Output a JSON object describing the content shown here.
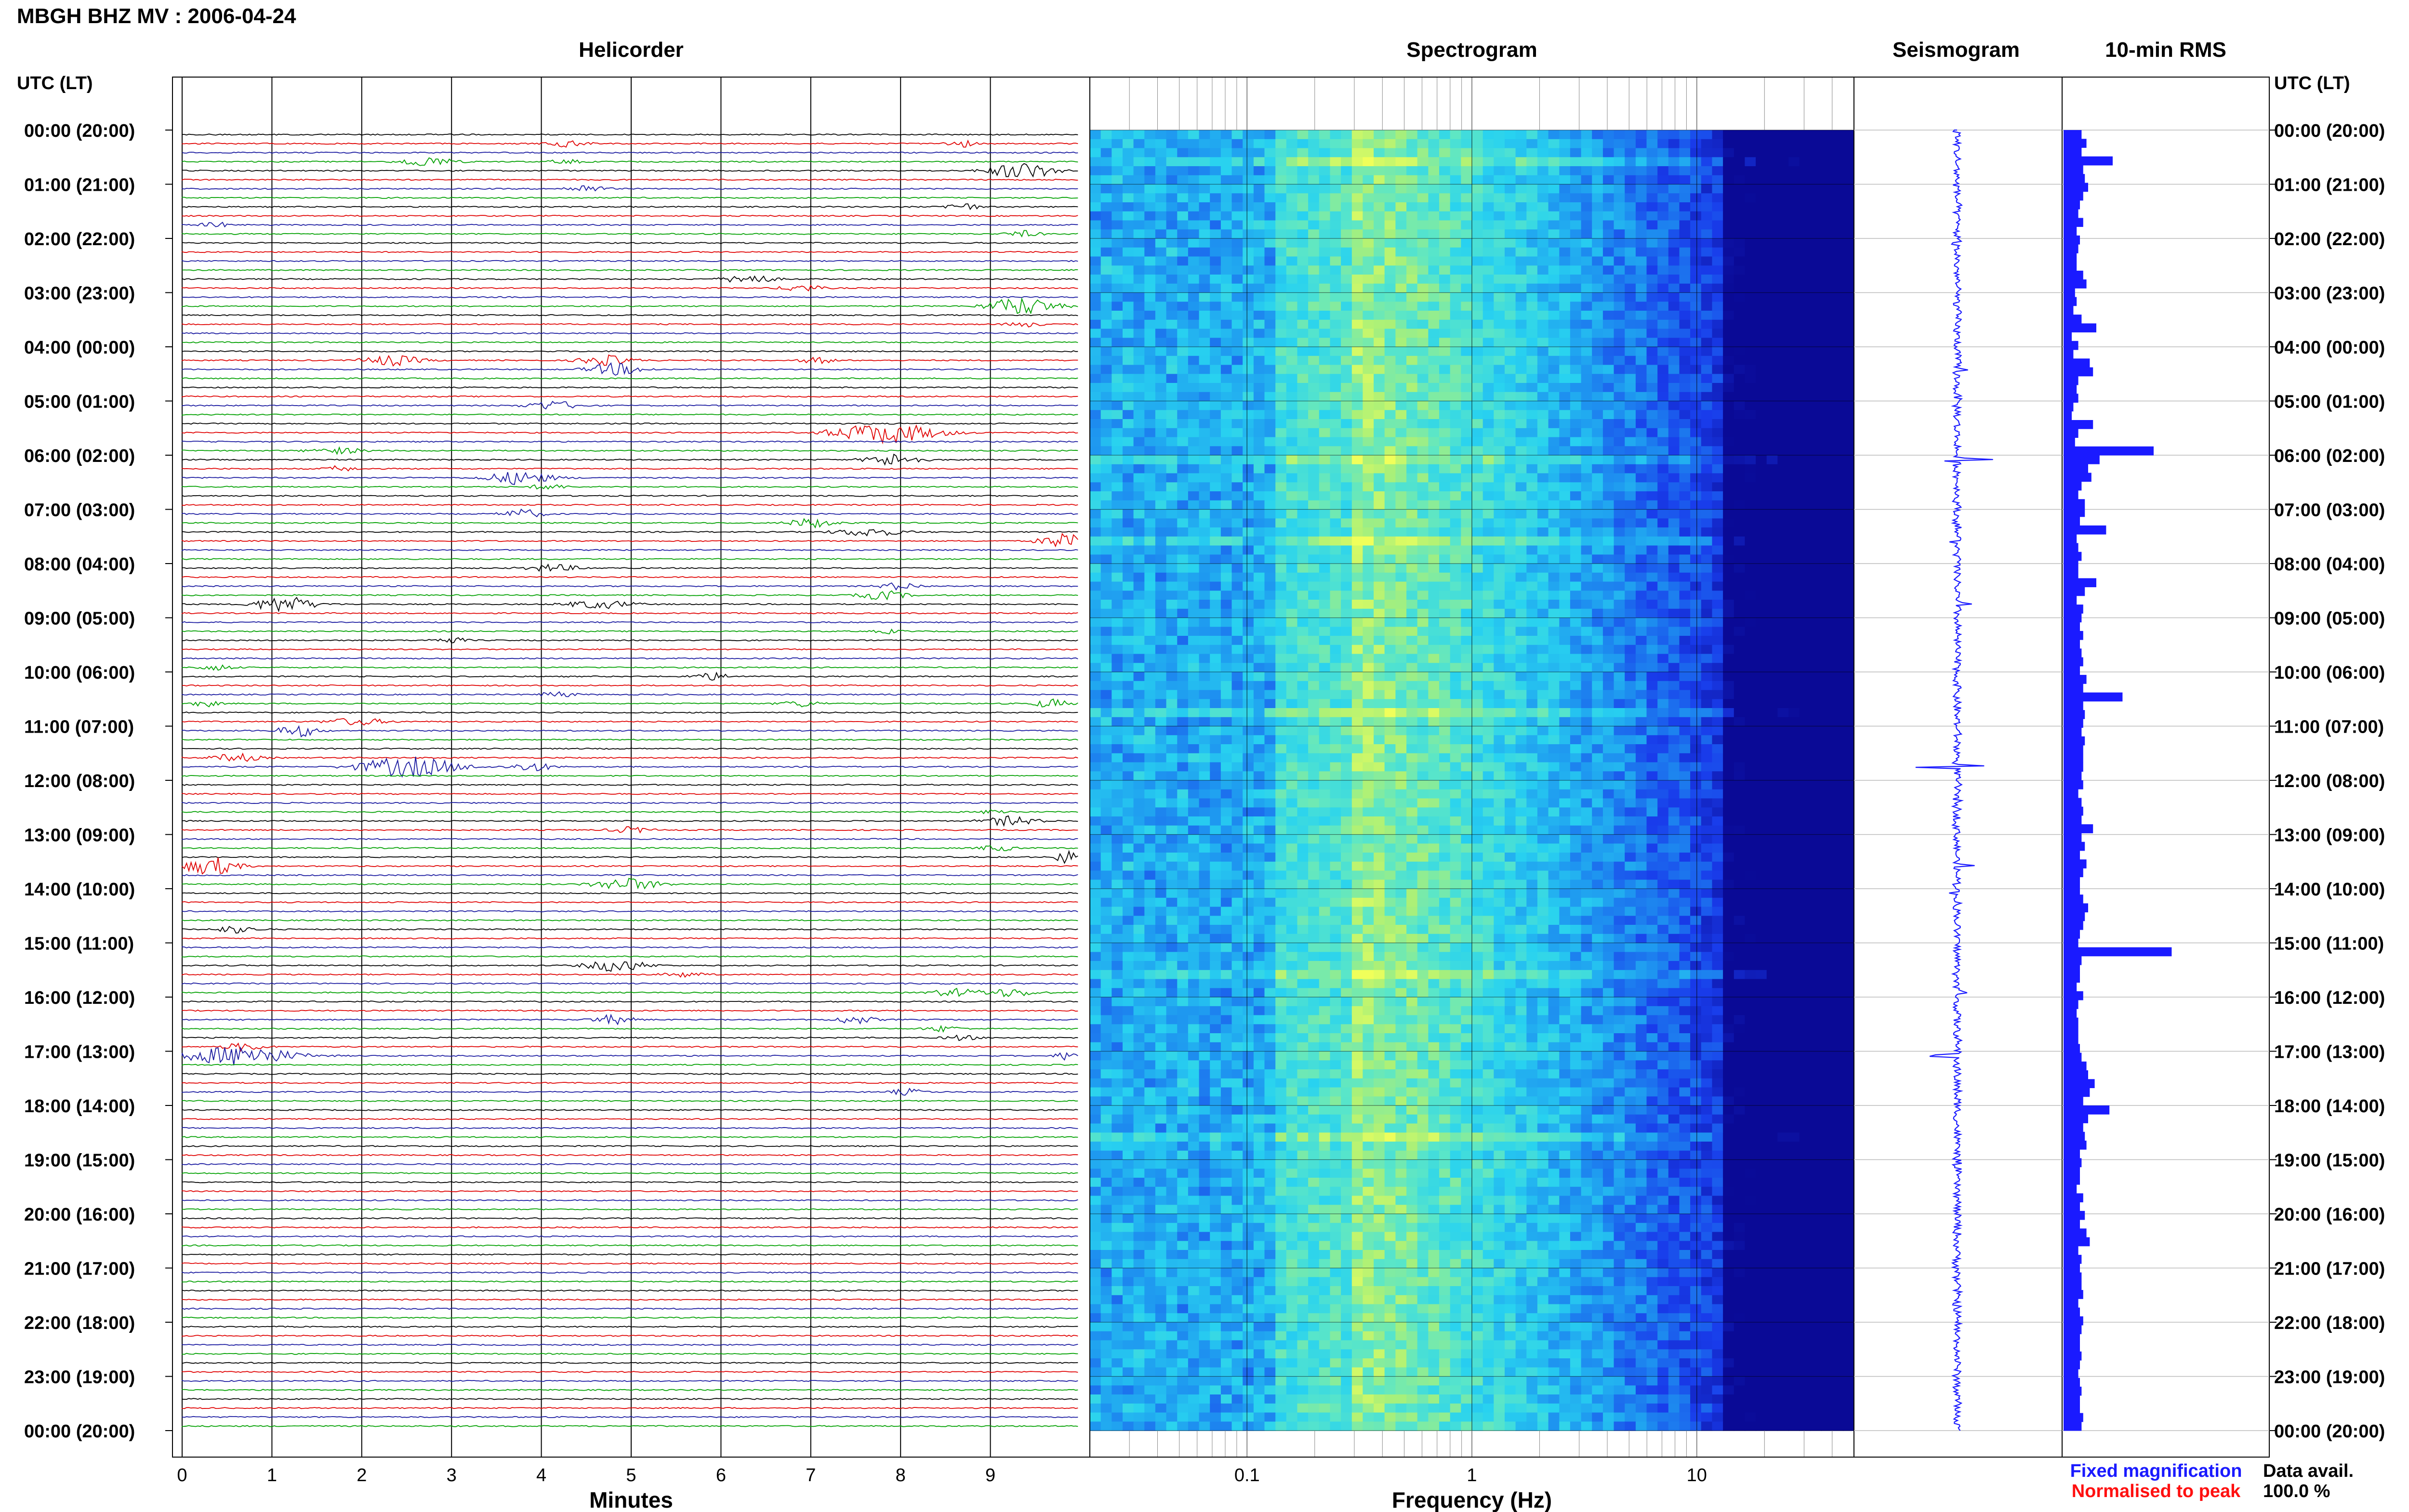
{
  "header": {
    "title": "MBGH BHZ MV : 2006-04-24",
    "left_axis_title": "UTC (LT)",
    "right_axis_title": "UTC (LT)"
  },
  "panels": {
    "helicorder": "Helicorder",
    "spectrogram": "Spectrogram",
    "seismogram": "Seismogram",
    "rms": "10-min RMS"
  },
  "axes": {
    "minutes_label": "Minutes",
    "frequency_label": "Frequency (Hz)"
  },
  "legend": {
    "fixed": "Fixed magnification",
    "normalised": "Normalised to peak",
    "fixed_color": "#1a1aff",
    "normalised_color": "#ff1010"
  },
  "availability": {
    "label": "Data avail.",
    "value": "100.0 %"
  },
  "colors": {
    "trace_colors": [
      "#000000",
      "#e00000",
      "#1a1aa0",
      "#00a000"
    ],
    "rms_bar": "#1a1aff",
    "seismogram": "#1a1aff",
    "spectrogram_low": "#0a0a9a",
    "spectrogram_high": "#f0ff60"
  },
  "chart_data": [
    {
      "type": "line",
      "name": "helicorder",
      "xlabel": "Minutes",
      "x_ticks": [
        0,
        1,
        2,
        3,
        4,
        5,
        6,
        7,
        8,
        9
      ],
      "xlim": [
        0,
        10
      ],
      "rows_per_hour": 6,
      "hours": 24,
      "hour_labels": [
        "00:00 (20:00)",
        "01:00 (21:00)",
        "02:00 (22:00)",
        "03:00 (23:00)",
        "04:00 (00:00)",
        "05:00 (01:00)",
        "06:00 (02:00)",
        "07:00 (03:00)",
        "08:00 (04:00)",
        "09:00 (05:00)",
        "10:00 (06:00)",
        "11:00 (07:00)",
        "12:00 (08:00)",
        "13:00 (09:00)",
        "14:00 (10:00)",
        "15:00 (11:00)",
        "16:00 (12:00)",
        "17:00 (13:00)",
        "18:00 (14:00)",
        "19:00 (15:00)",
        "20:00 (16:00)",
        "21:00 (17:00)",
        "22:00 (18:00)",
        "23:00 (19:00)",
        "00:00 (20:00)"
      ],
      "events": [
        {
          "row": 1,
          "minute": 4.2,
          "amp": 0.3,
          "dur": 0.6
        },
        {
          "row": 1,
          "minute": 8.6,
          "amp": 0.4,
          "dur": 0.4
        },
        {
          "row": 3,
          "minute": 2.6,
          "amp": 0.5,
          "dur": 0.8
        },
        {
          "row": 3,
          "minute": 4.2,
          "amp": 0.2,
          "dur": 0.5
        },
        {
          "row": 4,
          "minute": 9.2,
          "amp": 0.8,
          "dur": 1.0
        },
        {
          "row": 6,
          "minute": 4.4,
          "amp": 0.35,
          "dur": 0.6
        },
        {
          "row": 8,
          "minute": 8.6,
          "amp": 0.4,
          "dur": 0.5
        },
        {
          "row": 10,
          "minute": 0.3,
          "amp": 0.3,
          "dur": 0.4
        },
        {
          "row": 11,
          "minute": 9.3,
          "amp": 0.3,
          "dur": 0.5
        },
        {
          "row": 16,
          "minute": 6.2,
          "amp": 0.5,
          "dur": 0.7
        },
        {
          "row": 17,
          "minute": 6.8,
          "amp": 0.35,
          "dur": 0.6
        },
        {
          "row": 19,
          "minute": 9.2,
          "amp": 0.9,
          "dur": 1.0
        },
        {
          "row": 21,
          "minute": 9.3,
          "amp": 0.25,
          "dur": 0.5
        },
        {
          "row": 25,
          "minute": 2.2,
          "amp": 0.5,
          "dur": 0.9
        },
        {
          "row": 25,
          "minute": 4.6,
          "amp": 0.5,
          "dur": 0.8
        },
        {
          "row": 25,
          "minute": 7.0,
          "amp": 0.3,
          "dur": 0.5
        },
        {
          "row": 26,
          "minute": 4.7,
          "amp": 0.6,
          "dur": 0.8
        },
        {
          "row": 30,
          "minute": 4.0,
          "amp": 0.45,
          "dur": 0.8
        },
        {
          "row": 33,
          "minute": 7.6,
          "amp": 1.0,
          "dur": 1.6
        },
        {
          "row": 35,
          "minute": 1.6,
          "amp": 0.3,
          "dur": 0.8
        },
        {
          "row": 36,
          "minute": 7.8,
          "amp": 0.6,
          "dur": 0.8
        },
        {
          "row": 37,
          "minute": 1.7,
          "amp": 0.3,
          "dur": 0.4
        },
        {
          "row": 38,
          "minute": 3.6,
          "amp": 0.65,
          "dur": 1.0
        },
        {
          "row": 39,
          "minute": 4.0,
          "amp": 0.3,
          "dur": 0.5
        },
        {
          "row": 42,
          "minute": 3.7,
          "amp": 0.45,
          "dur": 0.6
        },
        {
          "row": 43,
          "minute": 6.9,
          "amp": 0.45,
          "dur": 0.7
        },
        {
          "row": 44,
          "minute": 7.5,
          "amp": 0.4,
          "dur": 1.0
        },
        {
          "row": 45,
          "minute": 9.7,
          "amp": 0.7,
          "dur": 0.7
        },
        {
          "row": 48,
          "minute": 4.0,
          "amp": 0.35,
          "dur": 0.8
        },
        {
          "row": 50,
          "minute": 7.9,
          "amp": 0.35,
          "dur": 0.6
        },
        {
          "row": 51,
          "minute": 7.7,
          "amp": 0.45,
          "dur": 0.7
        },
        {
          "row": 52,
          "minute": 1.0,
          "amp": 0.8,
          "dur": 0.9
        },
        {
          "row": 52,
          "minute": 4.5,
          "amp": 0.4,
          "dur": 1.0
        },
        {
          "row": 55,
          "minute": 7.8,
          "amp": 0.2,
          "dur": 0.4
        },
        {
          "row": 56,
          "minute": 2.9,
          "amp": 0.3,
          "dur": 0.5
        },
        {
          "row": 59,
          "minute": 0.3,
          "amp": 0.3,
          "dur": 0.5
        },
        {
          "row": 60,
          "minute": 5.8,
          "amp": 0.35,
          "dur": 0.6
        },
        {
          "row": 62,
          "minute": 4.1,
          "amp": 0.3,
          "dur": 0.5
        },
        {
          "row": 63,
          "minute": 9.6,
          "amp": 0.45,
          "dur": 0.5
        },
        {
          "row": 63,
          "minute": 0.2,
          "amp": 0.3,
          "dur": 0.4
        },
        {
          "row": 63,
          "minute": 6.8,
          "amp": 0.3,
          "dur": 0.6
        },
        {
          "row": 65,
          "minute": 1.8,
          "amp": 0.35,
          "dur": 0.9
        },
        {
          "row": 66,
          "minute": 1.2,
          "amp": 0.6,
          "dur": 0.6
        },
        {
          "row": 69,
          "minute": 0.5,
          "amp": 0.4,
          "dur": 0.7
        },
        {
          "row": 70,
          "minute": 2.3,
          "amp": 1.0,
          "dur": 1.5
        },
        {
          "row": 70,
          "minute": 3.8,
          "amp": 0.45,
          "dur": 0.6
        },
        {
          "row": 75,
          "minute": 9.0,
          "amp": 0.3,
          "dur": 0.4
        },
        {
          "row": 76,
          "minute": 9.1,
          "amp": 0.45,
          "dur": 0.8
        },
        {
          "row": 77,
          "minute": 4.9,
          "amp": 0.3,
          "dur": 0.6
        },
        {
          "row": 79,
          "minute": 9.0,
          "amp": 0.3,
          "dur": 0.5
        },
        {
          "row": 80,
          "minute": 9.8,
          "amp": 0.8,
          "dur": 0.3
        },
        {
          "row": 81,
          "minute": 0.2,
          "amp": 0.9,
          "dur": 0.8
        },
        {
          "row": 83,
          "minute": 4.8,
          "amp": 0.6,
          "dur": 1.0
        },
        {
          "row": 88,
          "minute": 0.5,
          "amp": 0.35,
          "dur": 0.6
        },
        {
          "row": 92,
          "minute": 4.7,
          "amp": 0.6,
          "dur": 0.9
        },
        {
          "row": 93,
          "minute": 5.5,
          "amp": 0.25,
          "dur": 0.6
        },
        {
          "row": 95,
          "minute": 8.5,
          "amp": 0.4,
          "dur": 0.7
        },
        {
          "row": 95,
          "minute": 9.1,
          "amp": 0.4,
          "dur": 0.8
        },
        {
          "row": 98,
          "minute": 4.7,
          "amp": 0.45,
          "dur": 0.6
        },
        {
          "row": 98,
          "minute": 7.4,
          "amp": 0.4,
          "dur": 0.6
        },
        {
          "row": 99,
          "minute": 8.4,
          "amp": 0.3,
          "dur": 0.5
        },
        {
          "row": 100,
          "minute": 8.6,
          "amp": 0.25,
          "dur": 0.5
        },
        {
          "row": 101,
          "minute": 0.6,
          "amp": 0.4,
          "dur": 0.6
        },
        {
          "row": 102,
          "minute": 9.8,
          "amp": 0.5,
          "dur": 0.3
        },
        {
          "row": 102,
          "minute": 0.4,
          "amp": 1.0,
          "dur": 1.6
        },
        {
          "row": 106,
          "minute": 8.0,
          "amp": 0.3,
          "dur": 0.5
        }
      ]
    },
    {
      "type": "heatmap",
      "name": "spectrogram",
      "xlabel": "Frequency (Hz)",
      "x_scale": "log",
      "xlim": [
        0.02,
        50
      ],
      "x_ticks": [
        0.1,
        1,
        10
      ],
      "x_tick_labels": [
        "0.1",
        "1",
        "10"
      ],
      "peak_frequency_hz": 0.3,
      "colormap": "jet-like, dark blue to yellow"
    },
    {
      "type": "line",
      "name": "seismogram",
      "orientation": "vertical",
      "spikes": [
        {
          "row": 3,
          "amp": 0.25
        },
        {
          "row": 12,
          "amp": 0.2
        },
        {
          "row": 26,
          "amp": 0.2
        },
        {
          "row": 36,
          "amp": 0.7
        },
        {
          "row": 45,
          "amp": 0.25
        },
        {
          "row": 52,
          "amp": 0.3
        },
        {
          "row": 70,
          "amp": 1.0
        },
        {
          "row": 81,
          "amp": 0.35
        },
        {
          "row": 84,
          "amp": 0.2
        },
        {
          "row": 95,
          "amp": 0.25
        },
        {
          "row": 102,
          "amp": 0.95
        }
      ]
    },
    {
      "type": "bar",
      "name": "10-min RMS",
      "orientation": "horizontal",
      "values": [
        1.1,
        1.4,
        1.1,
        3.0,
        1.2,
        1.3,
        1.5,
        1.2,
        1.0,
        0.9,
        1.2,
        0.8,
        1.0,
        0.9,
        0.8,
        0.8,
        1.2,
        1.4,
        0.7,
        0.8,
        0.6,
        1.1,
        2.0,
        0.5,
        0.9,
        0.6,
        1.6,
        1.8,
        0.9,
        0.8,
        0.9,
        0.6,
        0.5,
        1.8,
        0.9,
        0.7,
        5.5,
        2.2,
        1.5,
        1.7,
        1.1,
        0.9,
        1.3,
        1.3,
        1.0,
        2.6,
        0.8,
        0.9,
        1.1,
        0.9,
        0.9,
        2.0,
        1.3,
        0.8,
        1.2,
        1.1,
        1.0,
        1.2,
        1.0,
        1.1,
        1.2,
        1.0,
        1.4,
        1.2,
        3.6,
        1.2,
        1.3,
        1.2,
        1.1,
        1.3,
        1.2,
        1.2,
        1.2,
        1.1,
        1.2,
        0.9,
        1.1,
        1.2,
        1.1,
        1.8,
        1.1,
        1.3,
        1.0,
        1.4,
        1.2,
        1.0,
        1.0,
        1.2,
        1.5,
        1.3,
        1.2,
        1.0,
        0.9,
        6.6,
        1.1,
        1.0,
        1.0,
        0.8,
        1.2,
        0.9,
        0.8,
        0.9,
        0.9,
        0.9,
        1.0,
        1.1,
        1.4,
        1.5,
        1.9,
        1.6,
        1.2,
        2.8,
        1.5,
        1.2,
        1.3,
        1.4,
        1.0,
        1.1,
        1.0,
        1.0,
        0.8,
        1.2,
        1.0,
        1.3,
        1.0,
        1.4,
        1.6,
        0.9,
        1.1,
        1.0,
        1.1,
        1.1,
        1.2,
        0.9,
        1.0,
        1.2,
        1.1,
        1.0,
        1.0,
        1.1,
        1.0,
        0.9,
        1.0,
        1.1,
        1.0,
        1.0,
        1.2,
        1.1
      ]
    }
  ]
}
